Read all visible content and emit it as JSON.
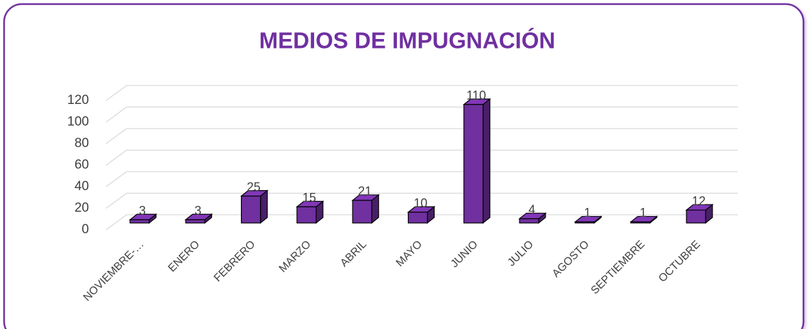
{
  "chart_data": {
    "type": "bar3d",
    "title": "MEDIOS DE IMPUGNACIÓN",
    "categories": [
      "NOVIEMBRE-…",
      "ENERO",
      "FEBRERO",
      "MARZO",
      "ABRIL",
      "MAYO",
      "JUNIO",
      "JULIO",
      "AGOSTO",
      "SEPTIEMBRE",
      "OCTUBRE"
    ],
    "values": [
      3,
      3,
      25,
      15,
      21,
      10,
      110,
      4,
      1,
      1,
      12
    ],
    "color": "#7030a0",
    "ylim": [
      0,
      120
    ],
    "yticks": [
      0,
      20,
      40,
      60,
      80,
      100,
      120
    ],
    "grid": true
  }
}
